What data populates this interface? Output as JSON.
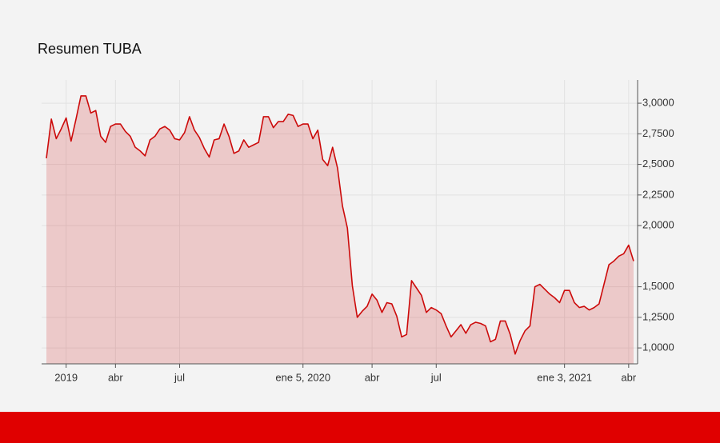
{
  "chart_data": {
    "type": "area",
    "title": "Resumen TUBA",
    "categories": [
      null,
      null,
      null,
      null,
      "2019",
      null,
      null,
      null,
      null,
      null,
      null,
      null,
      null,
      null,
      "abr",
      null,
      null,
      null,
      null,
      null,
      null,
      null,
      null,
      null,
      null,
      null,
      null,
      "jul",
      null,
      null,
      null,
      null,
      null,
      null,
      null,
      null,
      null,
      null,
      null,
      null,
      null,
      null,
      null,
      null,
      null,
      null,
      null,
      null,
      null,
      null,
      null,
      null,
      "ene 5, 2020",
      null,
      null,
      null,
      null,
      null,
      null,
      null,
      null,
      null,
      null,
      null,
      null,
      null,
      "abr",
      null,
      null,
      null,
      null,
      null,
      null,
      null,
      null,
      null,
      null,
      null,
      null,
      "jul",
      null,
      null,
      null,
      null,
      null,
      null,
      null,
      null,
      null,
      null,
      null,
      null,
      null,
      null,
      null,
      null,
      null,
      null,
      null,
      null,
      null,
      null,
      null,
      null,
      null,
      "ene 3, 2021",
      null,
      null,
      null,
      null,
      null,
      null,
      null,
      null,
      null,
      null,
      null,
      null,
      "abr",
      null
    ],
    "values": [
      2.55,
      2.87,
      2.71,
      2.79,
      2.88,
      2.69,
      2.87,
      3.06,
      3.06,
      2.92,
      2.94,
      2.73,
      2.68,
      2.81,
      2.83,
      2.83,
      2.77,
      2.73,
      2.64,
      2.61,
      2.57,
      2.7,
      2.73,
      2.79,
      2.81,
      2.78,
      2.71,
      2.7,
      2.76,
      2.89,
      2.78,
      2.72,
      2.63,
      2.56,
      2.7,
      2.71,
      2.83,
      2.73,
      2.59,
      2.61,
      2.7,
      2.64,
      2.66,
      2.68,
      2.89,
      2.89,
      2.8,
      2.85,
      2.85,
      2.91,
      2.9,
      2.81,
      2.83,
      2.83,
      2.71,
      2.78,
      2.54,
      2.49,
      2.64,
      2.47,
      2.16,
      1.98,
      1.51,
      1.25,
      1.3,
      1.34,
      1.44,
      1.39,
      1.29,
      1.37,
      1.36,
      1.26,
      1.09,
      1.11,
      1.55,
      1.49,
      1.43,
      1.29,
      1.33,
      1.31,
      1.28,
      1.18,
      1.09,
      1.14,
      1.19,
      1.12,
      1.19,
      1.21,
      1.2,
      1.18,
      1.05,
      1.07,
      1.22,
      1.22,
      1.11,
      0.95,
      1.06,
      1.14,
      1.18,
      1.5,
      1.52,
      1.48,
      1.44,
      1.41,
      1.37,
      1.47,
      1.47,
      1.37,
      1.33,
      1.34,
      1.31,
      1.33,
      1.36,
      1.52,
      1.68,
      1.71,
      1.75,
      1.77,
      1.84,
      1.71
    ],
    "color": "#cc0a0a",
    "ylim": [
      0.87,
      3.19
    ],
    "yticks": [
      {
        "value": 1,
        "label": "1,0000"
      },
      {
        "value": 1.25,
        "label": "1,2500"
      },
      {
        "value": 1.5,
        "label": "1,5000"
      },
      {
        "value": 2,
        "label": "2,0000"
      },
      {
        "value": 2.25,
        "label": "2,2500"
      },
      {
        "value": 2.5,
        "label": "2,5000"
      },
      {
        "value": 2.75,
        "label": "2,7500"
      },
      {
        "value": 3,
        "label": "3,0000"
      }
    ],
    "grid": true
  }
}
